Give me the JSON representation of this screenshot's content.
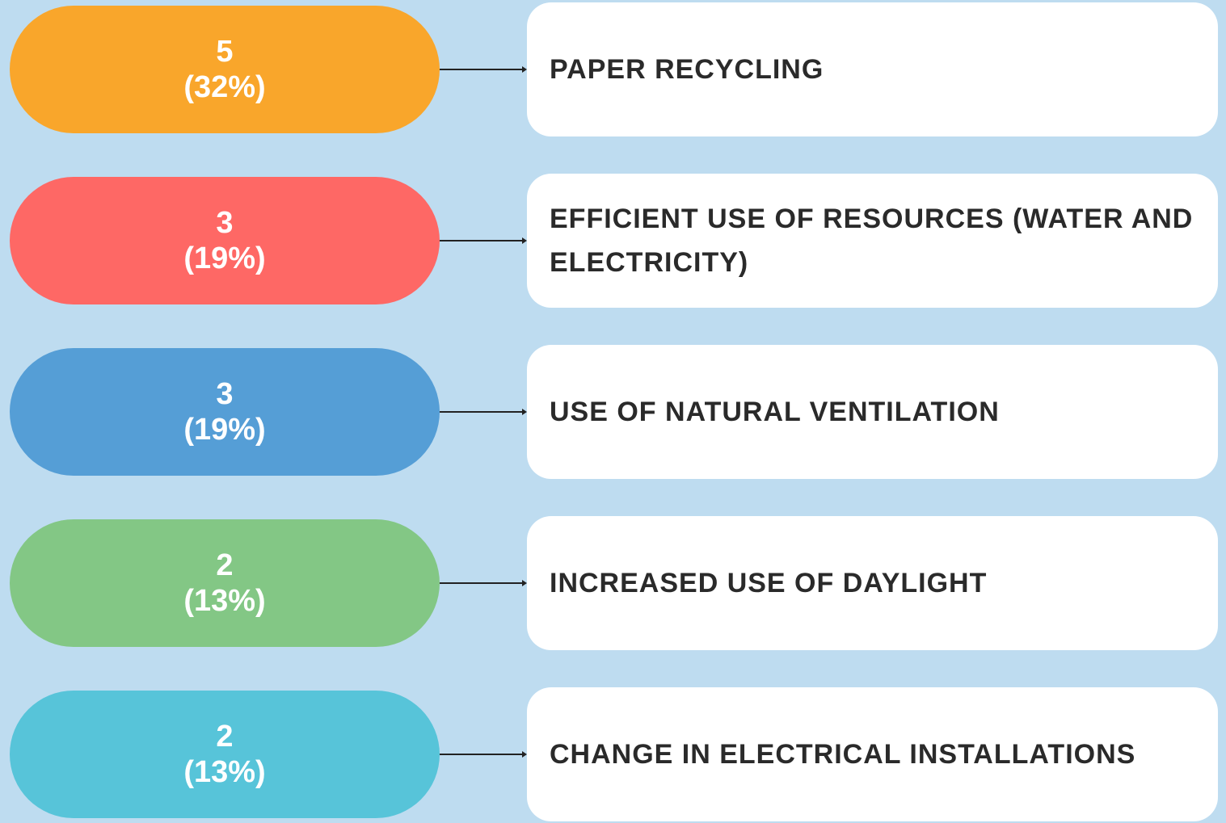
{
  "items": [
    {
      "count": 5,
      "share": "(32%)",
      "label": "PAPER RECYCLING",
      "color": "#f9a62b"
    },
    {
      "count": 3,
      "share": "(19%)",
      "label": "EFFICIENT USE OF RESOURCES (WATER AND ELECTRICITY)",
      "color": "#fe6865"
    },
    {
      "count": 3,
      "share": "(19%)",
      "label": "USE OF NATURAL VENTILATION",
      "color": "#559ed6"
    },
    {
      "count": 2,
      "share": "(13%)",
      "label": "INCREASED USE OF DAYLIGHT",
      "color": "#83c785"
    },
    {
      "count": 2,
      "share": "(13%)",
      "label": "CHANGE IN ELECTRICAL INSTALLATIONS",
      "color": "#57c4d9"
    }
  ]
}
